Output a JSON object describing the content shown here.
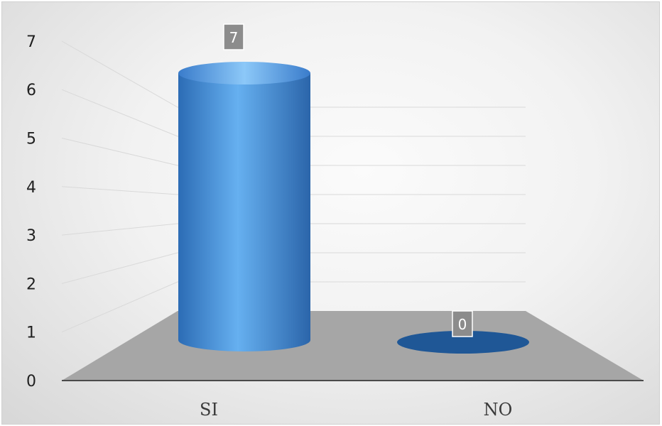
{
  "chart_data": {
    "type": "bar",
    "style": "3d-cylinder",
    "categories": [
      "SI",
      "NO"
    ],
    "series": [
      {
        "values": [
          7,
          0
        ]
      }
    ],
    "data_labels": [
      "7",
      "0"
    ],
    "ylim": [
      0,
      7
    ],
    "yticks": [
      "0",
      "1",
      "2",
      "3",
      "4",
      "5",
      "6",
      "7"
    ],
    "grid": true,
    "legend": "none",
    "colors": {
      "bar": "#3f86d4",
      "bar_light": "#6fb6f2",
      "bar_dark": "#1f5796",
      "floor": "#a6a6a6",
      "label_box": "#8c8c8c"
    }
  }
}
